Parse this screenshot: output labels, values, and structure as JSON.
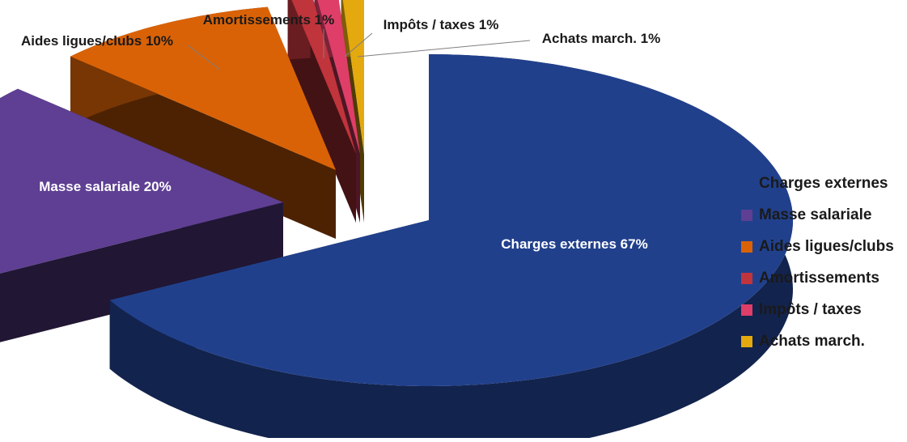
{
  "chart_data": {
    "type": "pie",
    "title": "",
    "slices": [
      {
        "name": "Charges externes",
        "value": 67,
        "label": "Charges externes 67%",
        "color": "#21408C"
      },
      {
        "name": "Masse salariale",
        "value": 20,
        "label": "Masse salariale 20%",
        "color": "#5E3F93"
      },
      {
        "name": "Aides ligues/clubs",
        "value": 10,
        "label": "Aides ligues/clubs 10%",
        "color": "#D96207"
      },
      {
        "name": "Amortissements",
        "value": 1,
        "label": "Amortissements 1%",
        "color": "#C0343C"
      },
      {
        "name": "Impôts / taxes",
        "value": 1,
        "label": "Impôts / taxes 1%",
        "color": "#DE3E68"
      },
      {
        "name": "Achats march.",
        "value": 1,
        "label": "Achats march. 1%",
        "color": "#E3A90E"
      }
    ],
    "legend_position": "right",
    "style": "3d-exploded"
  }
}
